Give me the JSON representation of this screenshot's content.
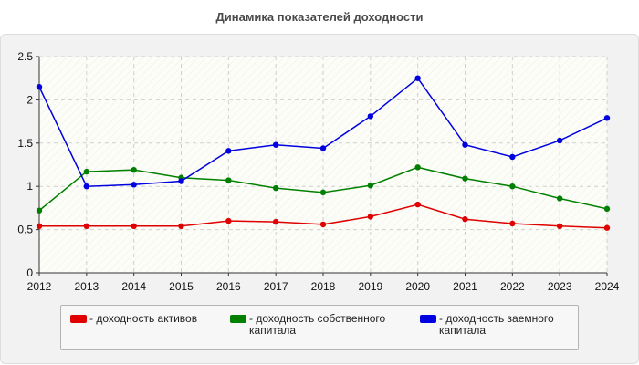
{
  "chart_data": {
    "type": "line",
    "title": "Динамика показателей доходности",
    "x": [
      "2012",
      "2013",
      "2014",
      "2015",
      "2016",
      "2017",
      "2018",
      "2019",
      "2020",
      "2021",
      "2022",
      "2023",
      "2024"
    ],
    "ylim": [
      0,
      2.5
    ],
    "yticks": [
      "0",
      "0.5",
      "1",
      "1.5",
      "2",
      "2.5"
    ],
    "grid": true,
    "legend_position": "bottom",
    "series": [
      {
        "name": "- доходность активов",
        "color": "#e00000",
        "values": [
          0.54,
          0.54,
          0.54,
          0.54,
          0.6,
          0.59,
          0.56,
          0.65,
          0.79,
          0.62,
          0.57,
          0.54,
          0.52
        ]
      },
      {
        "name": "- доходность собственного капитала",
        "color": "#008000",
        "values": [
          0.72,
          1.17,
          1.19,
          1.1,
          1.07,
          0.98,
          0.93,
          1.01,
          1.22,
          1.09,
          1.0,
          0.86,
          0.74
        ]
      },
      {
        "name": "- доходность заемного капитала",
        "color": "#0000e0",
        "values": [
          2.15,
          1.0,
          1.02,
          1.06,
          1.41,
          1.48,
          1.44,
          1.81,
          2.25,
          1.48,
          1.34,
          1.53,
          1.79
        ]
      }
    ]
  }
}
